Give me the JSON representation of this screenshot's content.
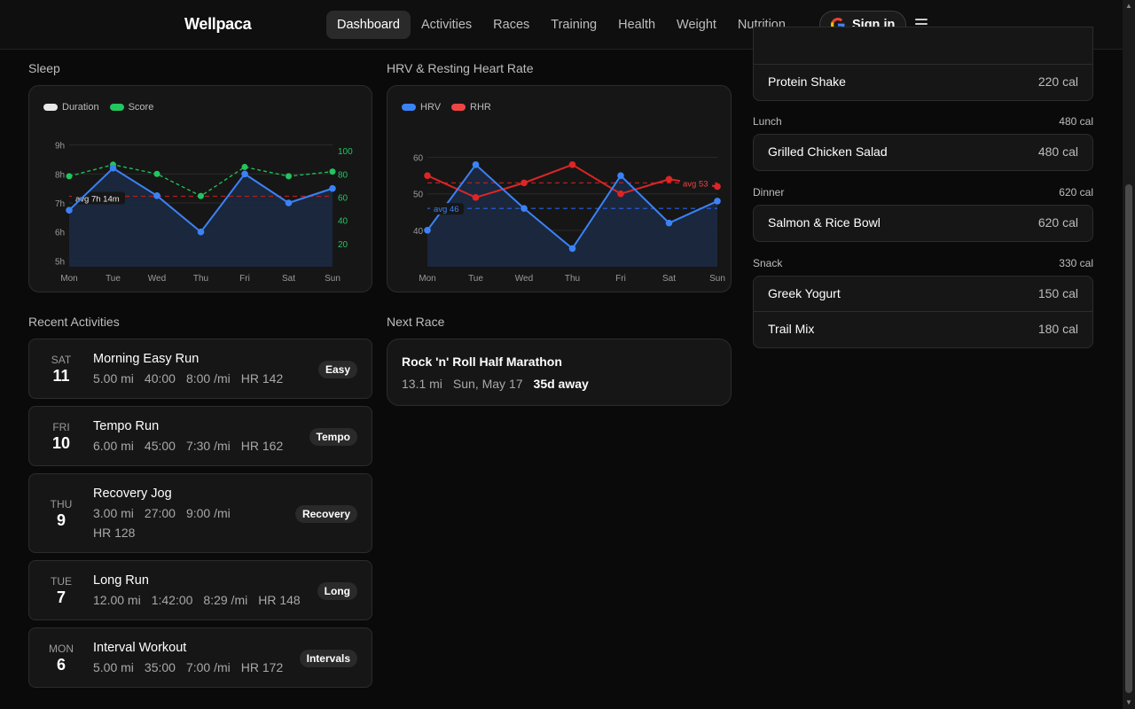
{
  "nav": {
    "brand": "Wellpaca",
    "items": [
      {
        "label": "Dashboard",
        "active": true
      },
      {
        "label": "Activities"
      },
      {
        "label": "Races"
      },
      {
        "label": "Training"
      },
      {
        "label": "Health"
      },
      {
        "label": "Weight"
      },
      {
        "label": "Nutrition"
      }
    ],
    "signin_label": "Sign in"
  },
  "sleep": {
    "title": "Sleep",
    "legend": [
      "Duration",
      "Score"
    ],
    "avg_label": "avg 7h 14m",
    "left_ticks": [
      "9h",
      "8h",
      "7h",
      "6h",
      "5h"
    ],
    "right_ticks": [
      "100",
      "80",
      "60",
      "40",
      "20"
    ],
    "days": [
      "Mon",
      "Tue",
      "Wed",
      "Thu",
      "Fri",
      "Sat",
      "Sun"
    ]
  },
  "hrv": {
    "title": "HRV & Resting Heart Rate",
    "legend": [
      "HRV",
      "RHR"
    ],
    "ticks": [
      "60",
      "50",
      "40"
    ],
    "avg_hrv_label": "avg 46",
    "avg_rhr_label": "avg 53",
    "days": [
      "Mon",
      "Tue",
      "Wed",
      "Thu",
      "Fri",
      "Sat",
      "Sun"
    ]
  },
  "chart_data": [
    {
      "type": "line",
      "title": "Sleep",
      "categories": [
        "Mon",
        "Tue",
        "Wed",
        "Thu",
        "Fri",
        "Sat",
        "Sun"
      ],
      "series": [
        {
          "name": "Duration",
          "axis": "left",
          "unit": "h",
          "values": [
            6.75,
            8.2,
            7.25,
            6.0,
            8.0,
            7.0,
            7.5
          ]
        },
        {
          "name": "Score",
          "axis": "right",
          "values": [
            78,
            88,
            80,
            61,
            86,
            78,
            82
          ]
        }
      ],
      "ylim_left": [
        4.8,
        9.2
      ],
      "ylim_right": [
        0,
        110
      ],
      "reference_lines": [
        {
          "series": "Duration",
          "value": 7.23,
          "label": "avg 7h 14m"
        }
      ],
      "colors": {
        "Duration": "#3b82f6",
        "Score": "#22c55e",
        "avg": "#dc2626"
      }
    },
    {
      "type": "line",
      "title": "HRV & Resting Heart Rate",
      "categories": [
        "Mon",
        "Tue",
        "Wed",
        "Thu",
        "Fri",
        "Sat",
        "Sun"
      ],
      "series": [
        {
          "name": "HRV",
          "values": [
            40,
            58,
            46,
            35,
            55,
            42,
            48
          ]
        },
        {
          "name": "RHR",
          "values": [
            55,
            49,
            53,
            58,
            50,
            54,
            52
          ]
        }
      ],
      "ylim": [
        30,
        65
      ],
      "reference_lines": [
        {
          "series": "HRV",
          "value": 46,
          "label": "avg 46"
        },
        {
          "series": "RHR",
          "value": 53,
          "label": "avg 53"
        }
      ],
      "colors": {
        "HRV": "#3b82f6",
        "RHR": "#dc2626"
      }
    }
  ],
  "activities": {
    "title": "Recent Activities",
    "items": [
      {
        "dow": "SAT",
        "day": "11",
        "name": "Morning Easy Run",
        "stats": [
          "5.00 mi",
          "40:00",
          "8:00 /mi",
          "HR 142"
        ],
        "tag": "Easy"
      },
      {
        "dow": "FRI",
        "day": "10",
        "name": "Tempo Run",
        "stats": [
          "6.00 mi",
          "45:00",
          "7:30 /mi",
          "HR 162"
        ],
        "tag": "Tempo"
      },
      {
        "dow": "THU",
        "day": "9",
        "name": "Recovery Jog",
        "stats": [
          "3.00 mi",
          "27:00",
          "9:00 /mi"
        ],
        "stats2": [
          "HR 128"
        ],
        "tag": "Recovery"
      },
      {
        "dow": "TUE",
        "day": "7",
        "name": "Long Run",
        "stats": [
          "12.00 mi",
          "1:42:00",
          "8:29 /mi",
          "HR 148"
        ],
        "tag": "Long"
      },
      {
        "dow": "MON",
        "day": "6",
        "name": "Interval Workout",
        "stats": [
          "5.00 mi",
          "35:00",
          "7:00 /mi",
          "HR 172"
        ],
        "tag": "Intervals"
      }
    ]
  },
  "race": {
    "title": "Next Race",
    "name": "Rock 'n' Roll Half Marathon",
    "distance": "13.1 mi",
    "date": "Sun, May 17",
    "countdown": "35d away"
  },
  "nutrition": {
    "top_item": {
      "name": "Protein Shake",
      "cal": "220 cal"
    },
    "meals": [
      {
        "label": "Lunch",
        "total": "480 cal",
        "items": [
          {
            "name": "Grilled Chicken Salad",
            "cal": "480 cal"
          }
        ]
      },
      {
        "label": "Dinner",
        "total": "620 cal",
        "items": [
          {
            "name": "Salmon & Rice Bowl",
            "cal": "620 cal"
          }
        ]
      },
      {
        "label": "Snack",
        "total": "330 cal",
        "items": [
          {
            "name": "Greek Yogurt",
            "cal": "150 cal"
          },
          {
            "name": "Trail Mix",
            "cal": "180 cal"
          }
        ]
      }
    ]
  }
}
